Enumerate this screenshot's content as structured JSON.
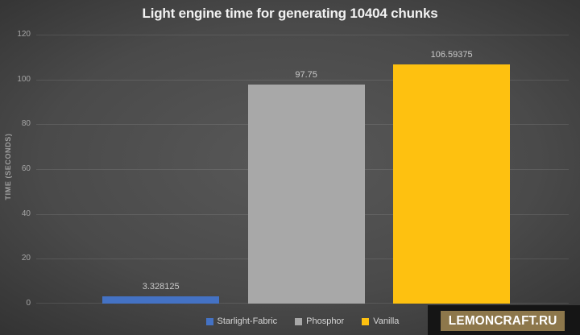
{
  "chart_data": {
    "type": "bar",
    "title": "Light engine time for generating 10404 chunks",
    "categories": [
      "Starlight-Fabric",
      "Phosphor",
      "Vanilla"
    ],
    "values": [
      3.328125,
      97.75,
      106.59375
    ],
    "data_labels": [
      "3.328125",
      "97.75",
      "106.59375"
    ],
    "colors": [
      "#4472c4",
      "#a8a8a8",
      "#fec110"
    ],
    "xlabel": "",
    "ylabel": "TIME (SECONDS)",
    "ylim": [
      0,
      120
    ],
    "y_ticks": [
      "120",
      "100",
      "80",
      "60",
      "40",
      "20",
      "0"
    ],
    "grid": true,
    "legend_position": "bottom"
  },
  "legend": {
    "items": [
      {
        "label": "Starlight-Fabric",
        "color": "#4472c4"
      },
      {
        "label": "Phosphor",
        "color": "#a8a8a8"
      },
      {
        "label": "Vanilla",
        "color": "#fec110"
      }
    ]
  },
  "watermark": {
    "text": "LEMONCRAFT.RU",
    "background": "#8d774b",
    "text_color": "#ffffff"
  }
}
